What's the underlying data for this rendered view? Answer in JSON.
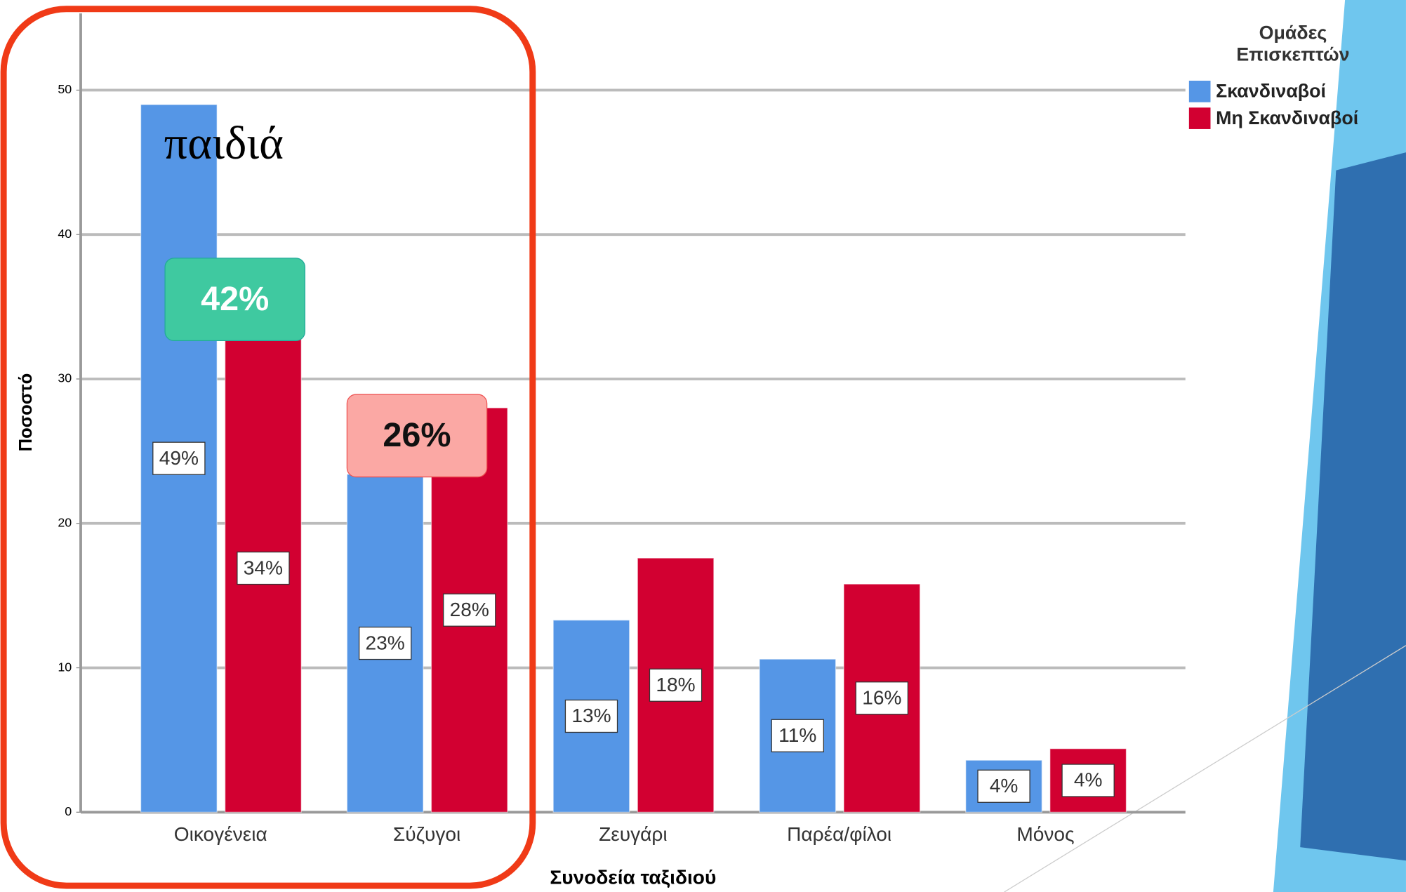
{
  "chart_data": {
    "type": "bar",
    "x_label": "Συνοδεία ταξιδιού",
    "y_label": "Ποσοστό",
    "legend_title": [
      "Ομάδες",
      "Επισκεπτών"
    ],
    "categories": [
      "Οικογένεια",
      "Σύζυγοι",
      "Ζευγάρι",
      "Παρέα/φίλοι",
      "Μόνος"
    ],
    "series": [
      {
        "name": "Σκανδιναβοί",
        "color": "#5596e6",
        "values": [
          49,
          23.4,
          13.3,
          10.6,
          3.6
        ],
        "value_labels": [
          "49%",
          "23%",
          "13%",
          "11%",
          "4%"
        ]
      },
      {
        "name": "Μη Σκανδιναβοί",
        "color": "#d20031",
        "values": [
          33.8,
          28,
          17.6,
          15.8,
          4.4
        ],
        "value_labels": [
          "34%",
          "28%",
          "18%",
          "16%",
          "4%"
        ]
      }
    ],
    "ylim": [
      0,
      55
    ],
    "yticks": [
      0,
      10,
      20,
      30,
      40,
      50
    ],
    "grid": true,
    "legend": "top-right",
    "annotations": [
      "παιδιά",
      "42%",
      "26%"
    ]
  }
}
